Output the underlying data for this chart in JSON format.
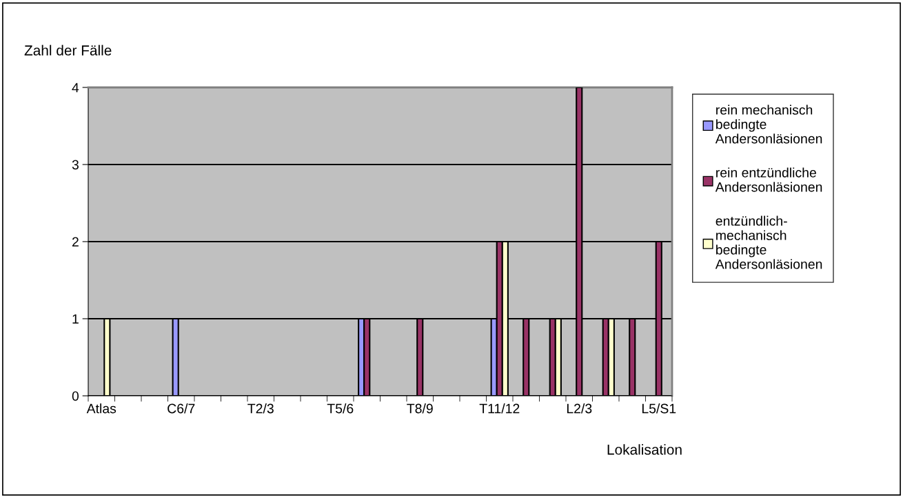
{
  "chart_data": {
    "type": "bar",
    "ylabel": "Zahl der Fälle",
    "xlabel": "Lokalisation",
    "categories": [
      "Atlas",
      null,
      null,
      "C6/7",
      null,
      null,
      "T2/3",
      null,
      null,
      "T5/6",
      null,
      null,
      "T8/9",
      null,
      null,
      "T11/12",
      null,
      null,
      "L2/3",
      null,
      null,
      "L5/S1"
    ],
    "series": [
      {
        "name": "rein mechanisch bedingte Andersonläsionen",
        "color": "#9999ff",
        "values": [
          null,
          null,
          null,
          1,
          null,
          null,
          null,
          null,
          null,
          null,
          1,
          null,
          null,
          null,
          null,
          1,
          null,
          null,
          null,
          null,
          null,
          null
        ]
      },
      {
        "name": "rein entzündliche Andersonläsionen",
        "color": "#993366",
        "values": [
          null,
          null,
          null,
          null,
          null,
          null,
          null,
          null,
          null,
          null,
          1,
          null,
          1,
          null,
          null,
          2,
          1,
          1,
          4,
          1,
          1,
          2
        ]
      },
      {
        "name": "entzündlich-mechanisch bedingte Andersonläsionen",
        "color": "#ffffcc",
        "values": [
          1,
          null,
          null,
          null,
          null,
          null,
          null,
          null,
          null,
          null,
          null,
          null,
          null,
          null,
          null,
          2,
          null,
          1,
          null,
          1,
          null,
          null
        ]
      }
    ],
    "ylim": [
      0,
      4
    ],
    "yticks": [
      0,
      1,
      2,
      3,
      4
    ],
    "grid": "y",
    "legend": "right"
  }
}
